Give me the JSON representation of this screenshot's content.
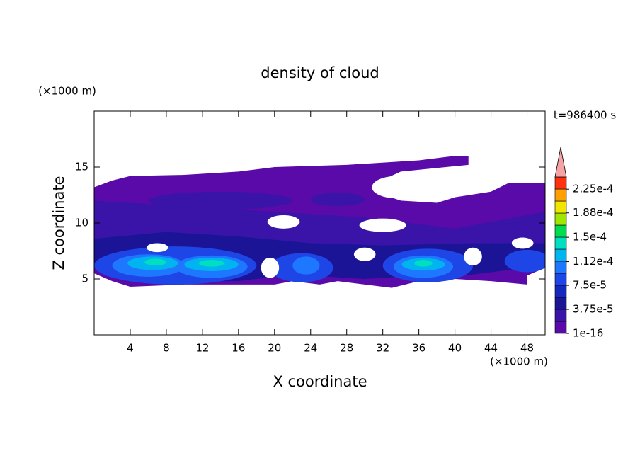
{
  "chart_data": {
    "type": "contour",
    "title": "density of cloud",
    "x_label": "X coordinate",
    "y_label": "Z coordinate",
    "x_unit": "(×1000 m)",
    "y_unit": "(×1000 m)",
    "annotation": "t=986400 s",
    "xlim": [
      0,
      50
    ],
    "ylim": [
      0,
      20
    ],
    "xticks": [
      4,
      8,
      12,
      16,
      20,
      24,
      28,
      32,
      36,
      40,
      44,
      48
    ],
    "yticks": [
      5,
      10,
      15
    ],
    "colorbar": {
      "colors": [
        "#5a0aa8",
        "#3a14a8",
        "#1c1496",
        "#1428c0",
        "#1e46e6",
        "#1e78ff",
        "#00b4f0",
        "#00e0c0",
        "#00dc50",
        "#a0e600",
        "#f0e600",
        "#ffa000",
        "#ff3010"
      ],
      "extend_color": "#f4a4a4",
      "clim": [
        1e-16,
        0.000244
      ],
      "ticks": [
        1e-16,
        {
          "value": 3.75e-05,
          "label": "3.75e-5"
        },
        {
          "value": 7.5e-05,
          "label": "7.5e-5"
        },
        {
          "value": 0.000112,
          "label": "1.12e-4"
        },
        {
          "value": 0.00015,
          "label": "1.5e-4"
        },
        {
          "value": 0.000188,
          "label": "1.88e-4"
        },
        {
          "value": 0.000225,
          "label": "2.25e-4"
        }
      ]
    }
  }
}
